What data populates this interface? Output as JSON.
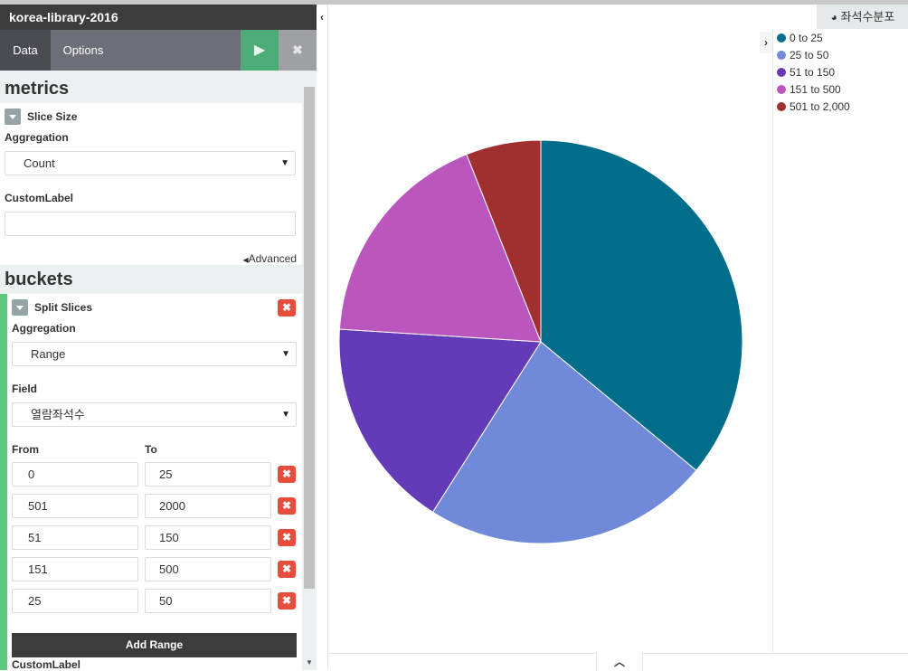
{
  "index_pattern": "korea-library-2016",
  "tabs": {
    "data": "Data",
    "options": "Options"
  },
  "icons": {
    "play": "play-icon",
    "close": "close-icon",
    "collapse": "chevron-left-icon",
    "legend_toggle": "chevron-right-icon",
    "pie": "pie-chart-icon",
    "bottom": "chevron-up-icon"
  },
  "metrics": {
    "title": "metrics",
    "agg_name": "Slice Size",
    "aggregation_label": "Aggregation",
    "aggregation_value": "Count",
    "custom_label_label": "CustomLabel",
    "custom_label_value": "",
    "advanced": "Advanced"
  },
  "buckets": {
    "title": "buckets",
    "agg_name": "Split Slices",
    "aggregation_label": "Aggregation",
    "aggregation_value": "Range",
    "field_label": "Field",
    "field_value": "열람좌석수",
    "from_label": "From",
    "to_label": "To",
    "ranges": [
      {
        "from": "0",
        "to": "25"
      },
      {
        "from": "501",
        "to": "2000"
      },
      {
        "from": "51",
        "to": "150"
      },
      {
        "from": "151",
        "to": "500"
      },
      {
        "from": "25",
        "to": "50"
      }
    ],
    "add_range": "Add Range",
    "custom_label_label": "CustomLabel"
  },
  "vis_title": "좌석수분포",
  "colors": {
    "accent_green": "#4dab78",
    "delete_red": "#e74c3c"
  },
  "chart_data": {
    "type": "pie",
    "title": "",
    "legend_placement": "right",
    "slices": [
      {
        "label": "0 to 25",
        "value": 36,
        "color": "#006e8a"
      },
      {
        "label": "25 to 50",
        "value": 23,
        "color": "#7089d8"
      },
      {
        "label": "51 to 150",
        "value": 17,
        "color": "#633ab8"
      },
      {
        "label": "151 to 500",
        "value": 18,
        "color": "#ba56bd"
      },
      {
        "label": "501 to 2,000",
        "value": 6,
        "color": "#a0302f"
      }
    ]
  }
}
